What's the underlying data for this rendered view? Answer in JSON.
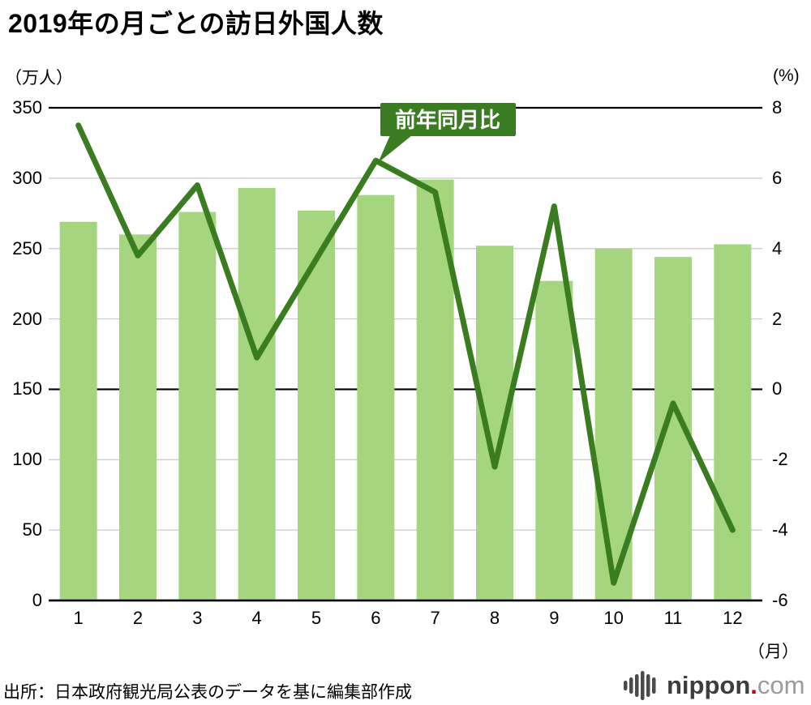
{
  "title": "2019年の月ごとの訪日外国人数",
  "annotation": "前年同月比",
  "source": "出所：日本政府観光局公表のデータを基に編集部作成",
  "logo": {
    "name": "nippon",
    "dot": ".",
    "tld": "com"
  },
  "colors": {
    "bar": "#a5d57e",
    "line": "#3a7d21",
    "annotation_bg": "#3a7d21",
    "annotation_text": "#ffffff",
    "grid": "#c9c9c9",
    "axis": "#000000",
    "logo_text": "#3d3d3d",
    "logo_dot": "#cf000e",
    "logo_tld": "#9b9b9b",
    "logo_icon": "#4a4a4a"
  },
  "chart_data": {
    "type": "bar",
    "title": "2019年の月ごとの訪日外国人数",
    "categories": [
      "1",
      "2",
      "3",
      "4",
      "5",
      "6",
      "7",
      "8",
      "9",
      "10",
      "11",
      "12"
    ],
    "x_label": "（月）",
    "grid": true,
    "legend": "none",
    "left_axis": {
      "label": "（万人）",
      "min": 0,
      "max": 350,
      "ticks": [
        0,
        50,
        100,
        150,
        200,
        250,
        300,
        350
      ]
    },
    "right_axis": {
      "label": "(%)",
      "min": -6,
      "max": 8,
      "ticks": [
        -6,
        -4,
        -2,
        0,
        2,
        4,
        6,
        8
      ]
    },
    "series": [
      {
        "name": "訪日外国人数（万人）",
        "type": "bar",
        "axis": "left",
        "values": [
          269,
          260,
          276,
          293,
          277,
          288,
          299,
          252,
          227,
          250,
          244,
          253
        ]
      },
      {
        "name": "前年同月比（%）",
        "type": "line",
        "axis": "right",
        "values": [
          7.5,
          3.8,
          5.8,
          0.9,
          3.7,
          6.5,
          5.6,
          -2.2,
          5.2,
          -5.5,
          -0.4,
          -4.0
        ]
      }
    ],
    "annotation_points_to_month": "6"
  }
}
